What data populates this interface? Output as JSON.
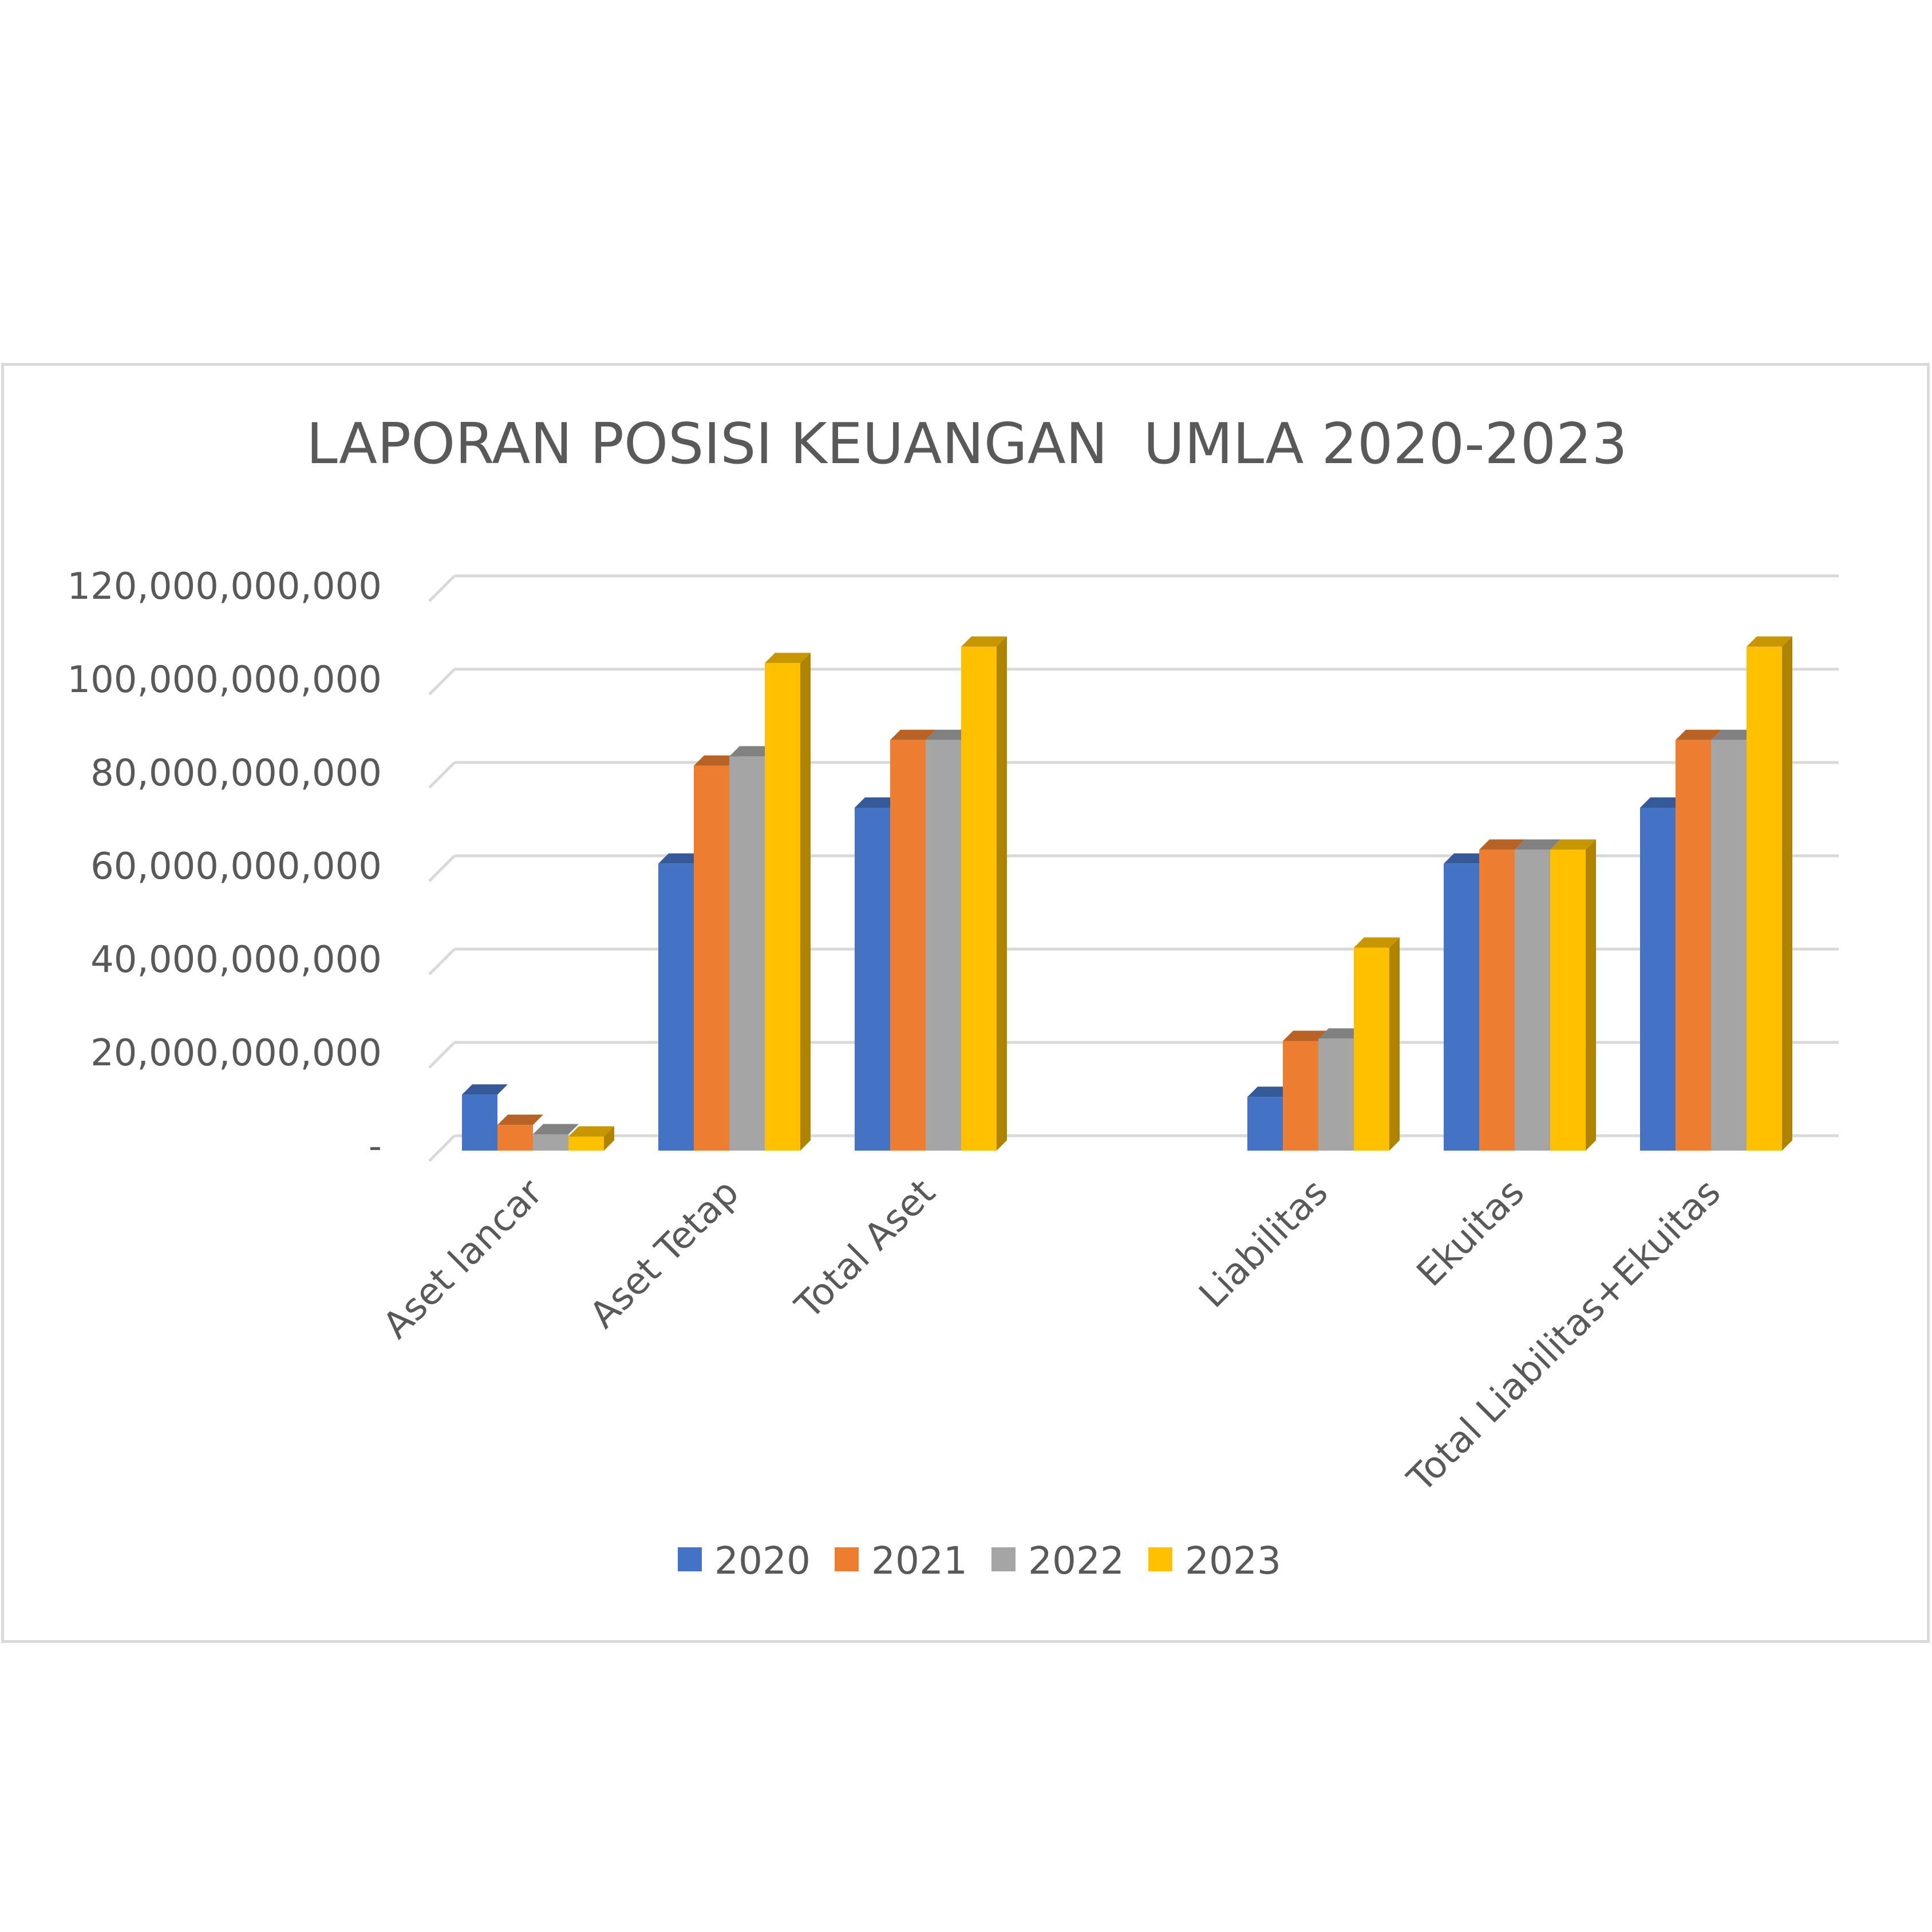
{
  "chart_data": {
    "type": "bar",
    "title": "LAPORAN POSISI KEUANGAN  UMLA 2020-2023",
    "categories": [
      "Aset lancar",
      "Aset Tetap",
      "Total Aset",
      "",
      "Liabilitas",
      "Ekuitas",
      "Total Liabilitas+Ekuitas"
    ],
    "series": [
      {
        "name": "2020",
        "color": "#4472c4",
        "values": [
          12000000000,
          61500000000,
          73500000000,
          0,
          11500000000,
          61500000000,
          73500000000
        ]
      },
      {
        "name": "2021",
        "color": "#ed7d31",
        "values": [
          5500000000,
          82500000000,
          88000000000,
          0,
          23500000000,
          64500000000,
          88000000000
        ]
      },
      {
        "name": "2022",
        "color": "#a5a5a5",
        "values": [
          3500000000,
          84500000000,
          88000000000,
          0,
          24000000000,
          64500000000,
          88000000000
        ]
      },
      {
        "name": "2023",
        "color": "#ffc000",
        "values": [
          3000000000,
          104500000000,
          108000000000,
          0,
          43500000000,
          64500000000,
          108000000000
        ]
      }
    ],
    "yticks": [
      "-",
      "20,000,000,000",
      "40,000,000,000",
      "60,000,000,000",
      "80,000,000,000",
      "100,000,000,000",
      "120,000,000,000"
    ],
    "ylim": [
      0,
      120000000000
    ],
    "grid": true,
    "legend": "bottom"
  }
}
